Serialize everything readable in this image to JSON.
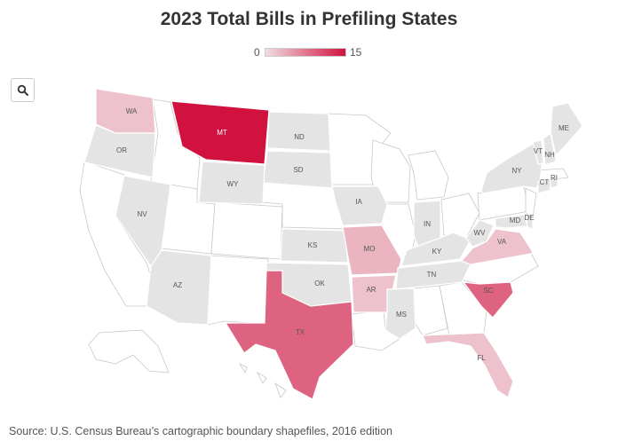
{
  "title": "2023 Total Bills in Prefiling States",
  "legend": {
    "min": "0",
    "max": "15",
    "min_value": 0,
    "max_value": 15,
    "color_low": "#f2dde2",
    "color_high": "#d1123f"
  },
  "no_data_color": "#e4e4e4",
  "outside_color": "#ffffff",
  "source": "Source: U.S. Census Bureau’s cartographic boundary shapefiles, 2016 edition",
  "search": {
    "icon": "search-icon"
  },
  "states": [
    {
      "abbr": "WA",
      "value": 2
    },
    {
      "abbr": "MT",
      "value": 15
    },
    {
      "abbr": "TX",
      "value": 9
    },
    {
      "abbr": "SC",
      "value": 9
    },
    {
      "abbr": "MO",
      "value": 3
    },
    {
      "abbr": "AR",
      "value": 2
    },
    {
      "abbr": "VA",
      "value": 2
    },
    {
      "abbr": "FL",
      "value": 2
    },
    {
      "abbr": "OR",
      "value": 0
    },
    {
      "abbr": "ND",
      "value": 0
    },
    {
      "abbr": "SD",
      "value": 0
    },
    {
      "abbr": "WY",
      "value": 0
    },
    {
      "abbr": "NV",
      "value": 0
    },
    {
      "abbr": "AZ",
      "value": 0
    },
    {
      "abbr": "OK",
      "value": 0
    },
    {
      "abbr": "KS",
      "value": 0
    },
    {
      "abbr": "IA",
      "value": 0
    },
    {
      "abbr": "IN",
      "value": 0
    },
    {
      "abbr": "KY",
      "value": 0
    },
    {
      "abbr": "TN",
      "value": 0
    },
    {
      "abbr": "MS",
      "value": 0
    },
    {
      "abbr": "WV",
      "value": 0
    },
    {
      "abbr": "MD",
      "value": 0
    },
    {
      "abbr": "DE",
      "value": 0
    },
    {
      "abbr": "NY",
      "value": 0
    },
    {
      "abbr": "VT",
      "value": 0
    },
    {
      "abbr": "NH",
      "value": 0
    },
    {
      "abbr": "ME",
      "value": 0
    },
    {
      "abbr": "CT",
      "value": 0
    },
    {
      "abbr": "RI",
      "value": 0
    }
  ],
  "outside_states": [
    "CA",
    "ID",
    "UT",
    "CO",
    "NM",
    "NE",
    "MN",
    "WI",
    "IL",
    "MI",
    "OH",
    "LA",
    "AL",
    "GA",
    "NC",
    "PA",
    "NJ",
    "MA",
    "AK",
    "HI"
  ]
}
